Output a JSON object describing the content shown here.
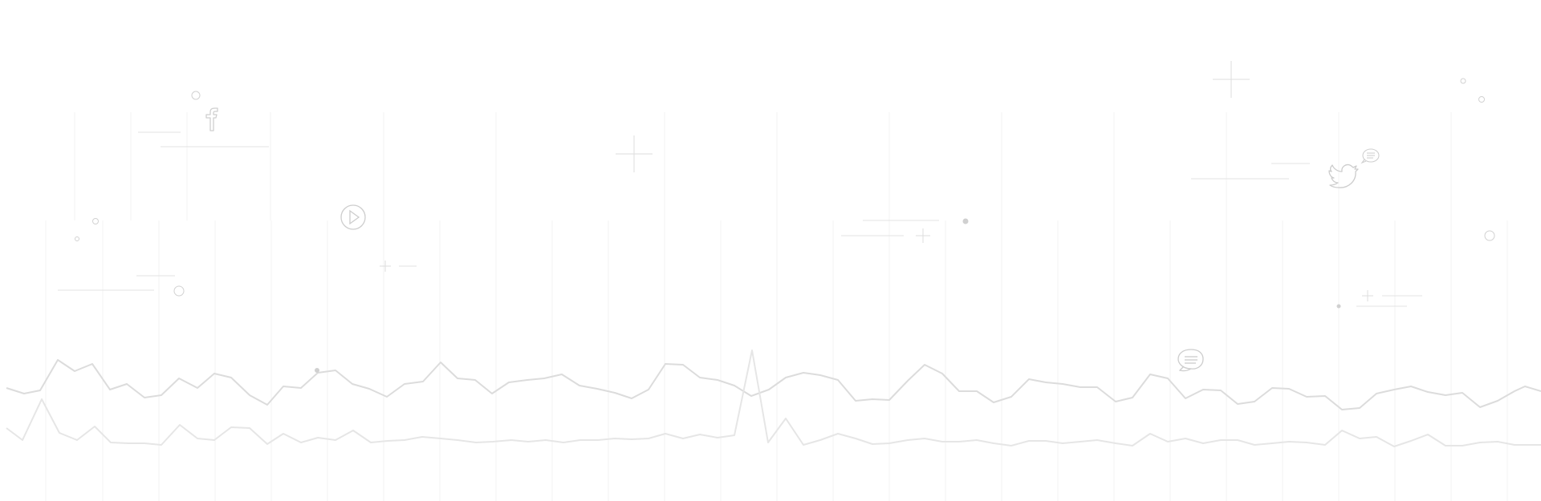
{
  "palette": {
    "background": "#ffffff",
    "line_dark": "#dddddd",
    "line_light": "#e9e9e9",
    "grid": "#f4f4f4",
    "decor": "#d6d6d6"
  },
  "icons": [
    "facebook-icon",
    "play-icon",
    "twitter-icon",
    "chat-bubble-icon",
    "chat-bubble-small-icon"
  ]
}
